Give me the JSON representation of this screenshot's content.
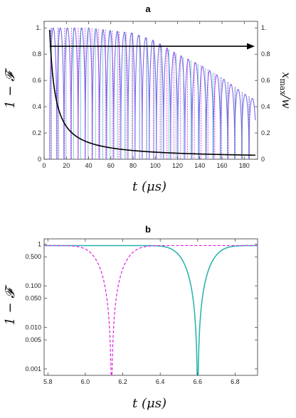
{
  "chart_data": [
    {
      "panel": "a",
      "type": "line",
      "xlabel": "t (μs)",
      "ylabel": "1 − 𝓕",
      "y2label": "xmax/w",
      "xlim": [
        0,
        192
      ],
      "ylim": [
        0,
        1.05
      ],
      "y2lim": [
        0,
        1.05
      ],
      "x_ticks": [
        0,
        20,
        40,
        60,
        80,
        100,
        120,
        140,
        160,
        180
      ],
      "y_ticks": [
        0,
        0.2,
        0.4,
        0.6,
        0.8,
        1.0
      ],
      "y_tick_labels": [
        "0",
        "0.2",
        "0.4",
        "0.6",
        "0.8",
        "1."
      ],
      "y2_ticks": [
        0,
        0.2,
        0.4,
        0.6,
        0.8,
        1.0
      ],
      "y2_tick_labels": [
        "0",
        "0.2",
        "0.4",
        "0.6",
        "0.8",
        "1."
      ],
      "grid": false,
      "series": [
        {
          "style": "teal solid",
          "color": "#20b2aa",
          "description_of_shape": "narrow dips from 1 to 0 at each period, envelope decays",
          "dip_times": [
            6.6
          ],
          "period": 6.6,
          "envelope": {
            "x": [
              0,
              40,
              80,
              100,
              120,
              140,
              160,
              180,
              190
            ],
            "y": [
              1.0,
              1.0,
              0.96,
              0.9,
              0.8,
              0.72,
              0.62,
              0.5,
              0.45
            ]
          }
        },
        {
          "style": "magenta dashed",
          "color": "#e020e0",
          "dip_times": [
            6.14
          ],
          "period": 6.14
        },
        {
          "style": "purple solid",
          "color": "#7b68ee",
          "oscillation_period": 6.4
        },
        {
          "style": "black decaying",
          "color": "#000000",
          "axis": "y2",
          "x": [
            5,
            7,
            10,
            15,
            20,
            30,
            40,
            60,
            80,
            100,
            120,
            140,
            160,
            180,
            190
          ],
          "y": [
            1.0,
            0.72,
            0.5,
            0.33,
            0.25,
            0.17,
            0.13,
            0.09,
            0.07,
            0.05,
            0.045,
            0.04,
            0.035,
            0.03,
            0.03
          ]
        }
      ],
      "annotations": [
        {
          "type": "arrow",
          "direction": "right",
          "x_from": 5,
          "x_to": 192,
          "y": 0.86
        }
      ]
    },
    {
      "panel": "b",
      "type": "line",
      "xlabel": "t (μs)",
      "ylabel": "1 − 𝓕",
      "xlim": [
        5.78,
        6.92
      ],
      "ylim": [
        0.0007,
        1.35
      ],
      "y_scale": "log",
      "x_ticks": [
        5.8,
        6.0,
        6.2,
        6.4,
        6.6,
        6.8
      ],
      "x_tick_labels": [
        "5.8",
        "6.0",
        "6.2",
        "6.4",
        "6.6",
        "6.8"
      ],
      "y_ticks": [
        0.001,
        0.005,
        0.01,
        0.05,
        0.1,
        0.5,
        1.0
      ],
      "y_tick_labels": [
        "0.001",
        "0.005",
        "0.010",
        "0.050",
        "0.100",
        "0.500",
        "1"
      ],
      "grid": false,
      "series": [
        {
          "style": "teal solid",
          "color": "#20b2aa",
          "dip_center": 6.6,
          "dip_min": 0.0007
        },
        {
          "style": "magenta dashed",
          "color": "#e020e0",
          "dip_center": 6.14,
          "dip_min": 0.0007
        }
      ]
    }
  ],
  "labels": {
    "panel_a": "a",
    "panel_b": "b",
    "a_ylabel": "1 − 𝓕",
    "a_y2label_main": "x",
    "a_y2label_sub": "max",
    "a_y2label_tail": "/w",
    "a_xlabel": "t (μs)",
    "b_ylabel": "1 − 𝓕",
    "b_xlabel": "t (μs)"
  }
}
